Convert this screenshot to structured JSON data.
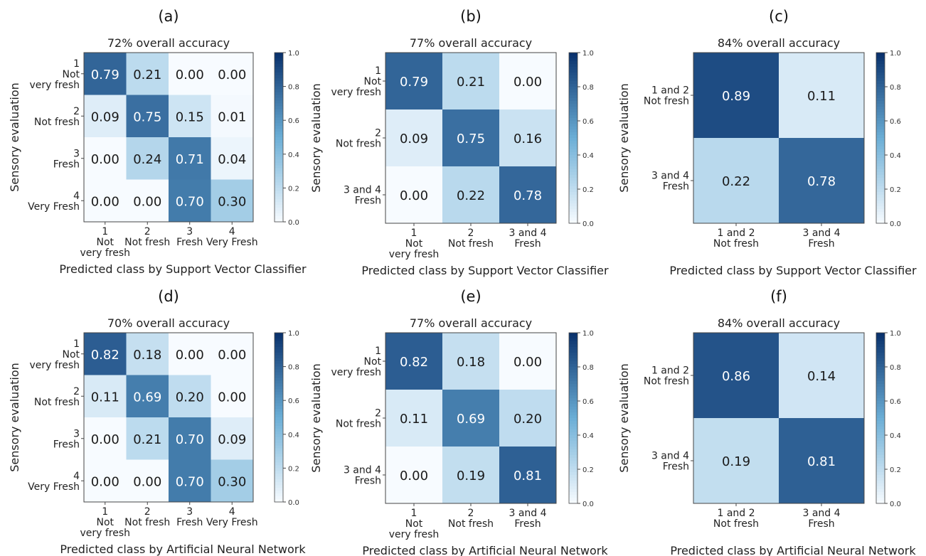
{
  "colorscale": {
    "low": "#f7fbff",
    "mid": "#6baed6",
    "high": "#08306b",
    "min": 0.0,
    "max": 1.0,
    "ticks": [
      "0.0",
      "0.2",
      "0.4",
      "0.6",
      "0.8",
      "1.0"
    ]
  },
  "text_colors": {
    "light": "#ffffff",
    "dark": "#1a1a1a"
  },
  "chart_data": [
    {
      "type": "heatmap",
      "panel_label": "(a)",
      "title": "72% overall accuracy",
      "xlabel": "Predicted class by Support Vector Classifier",
      "ylabel": "Sensory evaluation",
      "x_ticks": [
        [
          "1",
          "Not",
          "very fresh"
        ],
        [
          "2",
          "Not fresh"
        ],
        [
          "3",
          "Fresh"
        ],
        [
          "4",
          "Very Fresh"
        ]
      ],
      "y_ticks": [
        [
          "1",
          "Not",
          "very fresh"
        ],
        [
          "2",
          "Not fresh"
        ],
        [
          "3",
          "Fresh"
        ],
        [
          "4",
          "Very Fresh"
        ]
      ],
      "values": [
        [
          0.79,
          0.21,
          0.0,
          0.0
        ],
        [
          0.09,
          0.75,
          0.15,
          0.01
        ],
        [
          0.0,
          0.24,
          0.71,
          0.04
        ],
        [
          0.0,
          0.0,
          0.7,
          0.3
        ]
      ],
      "labels": [
        [
          "0.79",
          "0.21",
          "0.00",
          "0.00"
        ],
        [
          "0.09",
          "0.75",
          "0.15",
          "0.01"
        ],
        [
          "0.00",
          "0.24",
          "0.71",
          "0.04"
        ],
        [
          "0.00",
          "0.00",
          "0.70",
          "0.30"
        ]
      ]
    },
    {
      "type": "heatmap",
      "panel_label": "(b)",
      "title": "77% overall accuracy",
      "xlabel": "Predicted class by Support Vector Classifier",
      "ylabel": "Sensory evaluation",
      "x_ticks": [
        [
          "1",
          "Not",
          "very fresh"
        ],
        [
          "2",
          "Not fresh"
        ],
        [
          "3 and 4",
          "Fresh"
        ]
      ],
      "y_ticks": [
        [
          "1",
          "Not",
          "very fresh"
        ],
        [
          "2",
          "Not fresh"
        ],
        [
          "3 and 4",
          "Fresh"
        ]
      ],
      "values": [
        [
          0.79,
          0.21,
          0.0
        ],
        [
          0.09,
          0.75,
          0.16
        ],
        [
          0.0,
          0.22,
          0.78
        ]
      ],
      "labels": [
        [
          "0.79",
          "0.21",
          "0.00"
        ],
        [
          "0.09",
          "0.75",
          "0.16"
        ],
        [
          "0.00",
          "0.22",
          "0.78"
        ]
      ]
    },
    {
      "type": "heatmap",
      "panel_label": "(c)",
      "title": "84% overall accuracy",
      "xlabel": "Predicted class by Support Vector Classifier",
      "ylabel": "Sensory evaluation",
      "x_ticks": [
        [
          "1 and 2",
          "Not fresh"
        ],
        [
          "3 and 4",
          "Fresh"
        ]
      ],
      "y_ticks": [
        [
          "1 and 2",
          "Not fresh"
        ],
        [
          "3 and 4",
          "Fresh"
        ]
      ],
      "values": [
        [
          0.89,
          0.11
        ],
        [
          0.22,
          0.78
        ]
      ],
      "labels": [
        [
          "0.89",
          "0.11"
        ],
        [
          "0.22",
          "0.78"
        ]
      ]
    },
    {
      "type": "heatmap",
      "panel_label": "(d)",
      "title": "70% overall accuracy",
      "xlabel": "Predicted class by Artificial Neural Network",
      "ylabel": "Sensory evaluation",
      "x_ticks": [
        [
          "1",
          "Not",
          "very fresh"
        ],
        [
          "2",
          "Not fresh"
        ],
        [
          "3",
          "Fresh"
        ],
        [
          "4",
          "Very Fresh"
        ]
      ],
      "y_ticks": [
        [
          "1",
          "Not",
          "very fresh"
        ],
        [
          "2",
          "Not fresh"
        ],
        [
          "3",
          "Fresh"
        ],
        [
          "4",
          "Very Fresh"
        ]
      ],
      "values": [
        [
          0.82,
          0.18,
          0.0,
          0.0
        ],
        [
          0.11,
          0.69,
          0.2,
          0.0
        ],
        [
          0.0,
          0.21,
          0.7,
          0.09
        ],
        [
          0.0,
          0.0,
          0.7,
          0.3
        ]
      ],
      "labels": [
        [
          "0.82",
          "0.18",
          "0.00",
          "0.00"
        ],
        [
          "0.11",
          "0.69",
          "0.20",
          "0.00"
        ],
        [
          "0.00",
          "0.21",
          "0.70",
          "0.09"
        ],
        [
          "0.00",
          "0.00",
          "0.70",
          "0.30"
        ]
      ]
    },
    {
      "type": "heatmap",
      "panel_label": "(e)",
      "title": "77% overall accuracy",
      "xlabel": "Predicted class by Artificial Neural Network",
      "ylabel": "Sensory evaluation",
      "x_ticks": [
        [
          "1",
          "Not",
          "very fresh"
        ],
        [
          "2",
          "Not fresh"
        ],
        [
          "3 and 4",
          "Fresh"
        ]
      ],
      "y_ticks": [
        [
          "1",
          "Not",
          "very fresh"
        ],
        [
          "2",
          "Not fresh"
        ],
        [
          "3 and 4",
          "Fresh"
        ]
      ],
      "values": [
        [
          0.82,
          0.18,
          0.0
        ],
        [
          0.11,
          0.69,
          0.2
        ],
        [
          0.0,
          0.19,
          0.81
        ]
      ],
      "labels": [
        [
          "0.82",
          "0.18",
          "0.00"
        ],
        [
          "0.11",
          "0.69",
          "0.20"
        ],
        [
          "0.00",
          "0.19",
          "0.81"
        ]
      ]
    },
    {
      "type": "heatmap",
      "panel_label": "(f)",
      "title": "84% overall accuracy",
      "xlabel": "Predicted class by Artificial Neural Network",
      "ylabel": "Sensory evaluation",
      "x_ticks": [
        [
          "1 and 2",
          "Not fresh"
        ],
        [
          "3 and 4",
          "Fresh"
        ]
      ],
      "y_ticks": [
        [
          "1 and 2",
          "Not fresh"
        ],
        [
          "3 and 4",
          "Fresh"
        ]
      ],
      "values": [
        [
          0.86,
          0.14
        ],
        [
          0.19,
          0.81
        ]
      ],
      "labels": [
        [
          "0.86",
          "0.14"
        ],
        [
          "0.19",
          "0.81"
        ]
      ]
    }
  ]
}
